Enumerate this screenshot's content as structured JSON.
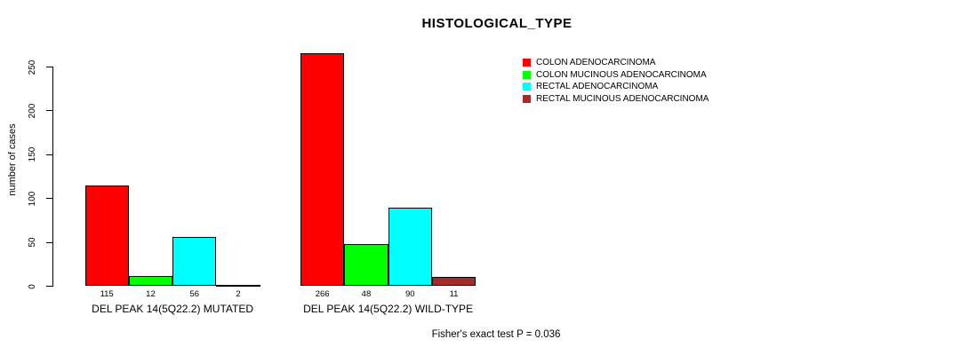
{
  "chart_data": {
    "type": "bar",
    "title": "HISTOLOGICAL_TYPE",
    "xlabel": "",
    "ylabel": "number of cases",
    "ylim": [
      0,
      250
    ],
    "yticks": [
      0,
      50,
      100,
      150,
      200,
      250
    ],
    "grid": false,
    "legend_position": "top-right",
    "categories": [
      "DEL PEAK 14(5Q22.2) MUTATED",
      "DEL PEAK 14(5Q22.2) WILD-TYPE"
    ],
    "series": [
      {
        "name": "COLON ADENOCARCINOMA",
        "color": "#FF0000",
        "values": [
          115,
          266
        ]
      },
      {
        "name": "COLON MUCINOUS ADENOCARCINOMA",
        "color": "#00FF00",
        "values": [
          12,
          48
        ]
      },
      {
        "name": "RECTAL ADENOCARCINOMA",
        "color": "#00FFFF",
        "values": [
          56,
          90
        ]
      },
      {
        "name": "RECTAL MUCINOUS ADENOCARCINOMA",
        "color": "#A52A2A",
        "values": [
          2,
          11
        ]
      }
    ],
    "annotation": "Fisher's exact test P = 0.036",
    "colors": {
      "axis": "#000000",
      "text": "#000000",
      "background": "#FFFFFF"
    }
  }
}
